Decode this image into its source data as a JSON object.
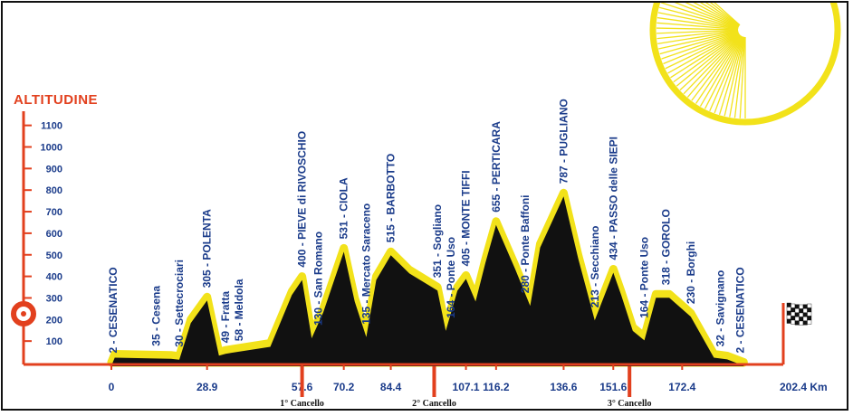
{
  "chart_data": {
    "type": "area",
    "ylabel": "ALTITUDINE",
    "ylim": [
      0,
      1100
    ],
    "yticks": [
      100,
      200,
      300,
      400,
      500,
      600,
      700,
      800,
      900,
      1000,
      1100
    ],
    "xlim": [
      0,
      202.4
    ],
    "xunit_label": "202.4 Km",
    "xticks": [
      "0",
      "28.9",
      "57.6",
      "70.2",
      "84.4",
      "107.1",
      "116.2",
      "136.6",
      "151.6",
      "172.4"
    ],
    "xtick_values": [
      0,
      28.9,
      57.6,
      70.2,
      84.4,
      107.1,
      116.2,
      136.6,
      151.6,
      172.4
    ],
    "checkpoints": [
      {
        "label": "1° Cancello",
        "km": 57.6
      },
      {
        "label": "2° Cancello",
        "km": 97.5
      },
      {
        "label": "3° Cancello",
        "km": 156.5
      }
    ],
    "profile": [
      {
        "km": 0,
        "alt": 2
      },
      {
        "km": 1,
        "alt": 40
      },
      {
        "km": 18,
        "alt": 35
      },
      {
        "km": 20.5,
        "alt": 30
      },
      {
        "km": 24,
        "alt": 200
      },
      {
        "km": 28.9,
        "alt": 305
      },
      {
        "km": 32.5,
        "alt": 49
      },
      {
        "km": 34.5,
        "alt": 58
      },
      {
        "km": 48,
        "alt": 90
      },
      {
        "km": 54.5,
        "alt": 330
      },
      {
        "km": 57.6,
        "alt": 400
      },
      {
        "km": 60.5,
        "alt": 130
      },
      {
        "km": 64,
        "alt": 250
      },
      {
        "km": 70.2,
        "alt": 531
      },
      {
        "km": 73.5,
        "alt": 300
      },
      {
        "km": 77,
        "alt": 135
      },
      {
        "km": 80,
        "alt": 400
      },
      {
        "km": 84.4,
        "alt": 515
      },
      {
        "km": 90,
        "alt": 430
      },
      {
        "km": 98.5,
        "alt": 351
      },
      {
        "km": 101,
        "alt": 164
      },
      {
        "km": 104.5,
        "alt": 350
      },
      {
        "km": 107.1,
        "alt": 405
      },
      {
        "km": 110,
        "alt": 300
      },
      {
        "km": 113,
        "alt": 480
      },
      {
        "km": 116.2,
        "alt": 655
      },
      {
        "km": 122,
        "alt": 450
      },
      {
        "km": 126.5,
        "alt": 280
      },
      {
        "km": 129.5,
        "alt": 550
      },
      {
        "km": 136.6,
        "alt": 787
      },
      {
        "km": 141,
        "alt": 500
      },
      {
        "km": 146,
        "alt": 213
      },
      {
        "km": 151.6,
        "alt": 434
      },
      {
        "km": 154,
        "alt": 330
      },
      {
        "km": 157.5,
        "alt": 164
      },
      {
        "km": 161,
        "alt": 120
      },
      {
        "km": 164.5,
        "alt": 318
      },
      {
        "km": 168.5,
        "alt": 318
      },
      {
        "km": 175,
        "alt": 230
      },
      {
        "km": 182,
        "alt": 40
      },
      {
        "km": 186,
        "alt": 32
      },
      {
        "km": 191,
        "alt": 2
      }
    ],
    "places": [
      {
        "text": "2 - CESENATICO",
        "km": 0.5,
        "alt": 2,
        "big": true
      },
      {
        "text": "35 - Cesena",
        "km": 13.5,
        "alt": 35,
        "big": false
      },
      {
        "text": "30 - Settecrociari",
        "km": 20.5,
        "alt": 30,
        "big": false
      },
      {
        "text": "305 - POLENTA",
        "km": 28.9,
        "alt": 305,
        "big": true
      },
      {
        "text": "49 - Fratta",
        "km": 34.5,
        "alt": 49,
        "big": false
      },
      {
        "text": "58 - Meldola",
        "km": 38.5,
        "alt": 58,
        "big": false
      },
      {
        "text": "400 - PIEVE di RIVOSCHIO",
        "km": 57.6,
        "alt": 400,
        "big": true
      },
      {
        "text": "130 - San Romano",
        "km": 62.5,
        "alt": 130,
        "big": false
      },
      {
        "text": "531 - CIOLA",
        "km": 70.2,
        "alt": 531,
        "big": true
      },
      {
        "text": "135 - Mercato Saraceno",
        "km": 77,
        "alt": 135,
        "big": false
      },
      {
        "text": "515 - BARBOTTO",
        "km": 84.4,
        "alt": 515,
        "big": true
      },
      {
        "text": "351 - Sogliano",
        "km": 98.5,
        "alt": 351,
        "big": false
      },
      {
        "text": "164 - Ponte Uso",
        "km": 102.5,
        "alt": 164,
        "big": false
      },
      {
        "text": "405 - MONTE TIFFI",
        "km": 107.1,
        "alt": 405,
        "big": true
      },
      {
        "text": "655 - PERTICARA",
        "km": 116.2,
        "alt": 655,
        "big": true
      },
      {
        "text": "280 - Ponte Baffoni",
        "km": 125,
        "alt": 280,
        "big": false
      },
      {
        "text": "787 - PUGLIANO",
        "km": 136.6,
        "alt": 787,
        "big": true
      },
      {
        "text": "213 - Secchiano",
        "km": 146,
        "alt": 213,
        "big": false
      },
      {
        "text": "434 - PASSO delle SIEPI",
        "km": 151.6,
        "alt": 434,
        "big": true
      },
      {
        "text": "164 - Ponte Uso",
        "km": 161,
        "alt": 164,
        "big": false
      },
      {
        "text": "318 - GOROLO",
        "km": 167.5,
        "alt": 318,
        "big": true
      },
      {
        "text": "230 - Borghi",
        "km": 175,
        "alt": 230,
        "big": false
      },
      {
        "text": "32 - Savignano",
        "km": 184,
        "alt": 32,
        "big": false
      },
      {
        "text": "2 - CESENATICO",
        "km": 190,
        "alt": 2,
        "big": true
      }
    ]
  },
  "colors": {
    "axis_red": "#e2401e",
    "label_blue": "#1a3b8a",
    "profile_fill": "#111111",
    "profile_edge": "#f2e21a",
    "sun_yellow": "#f2e21a"
  },
  "icons": {
    "start_marker": "start-circle-icon",
    "finish_flag": "checkered-flag-icon",
    "sun": "sun-icon"
  }
}
